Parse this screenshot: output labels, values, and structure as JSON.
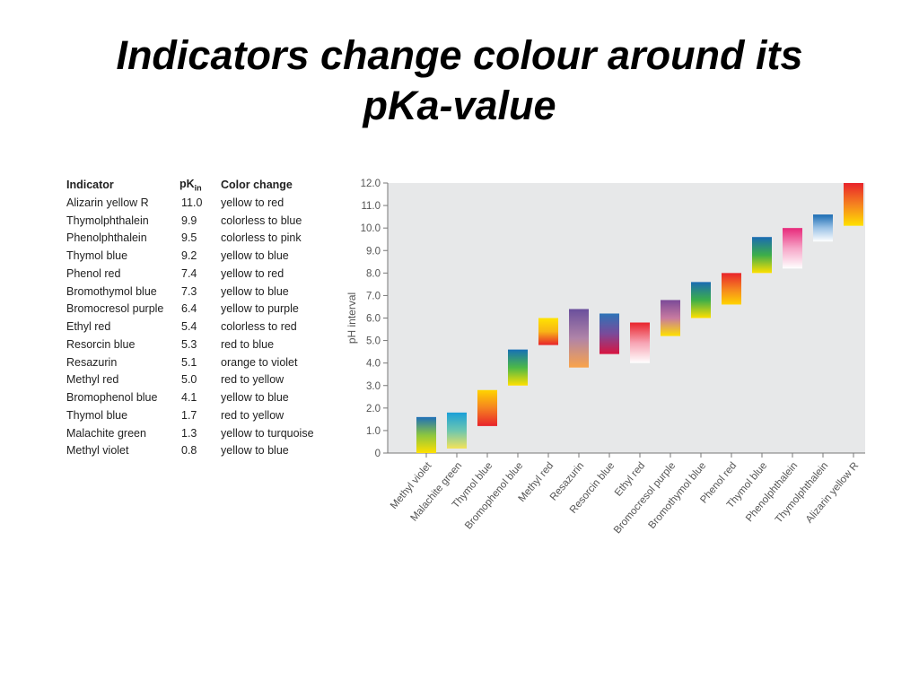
{
  "slide": {
    "title_line1": "Indicators change colour around its",
    "title_line2": "pKa-value"
  },
  "table": {
    "headers": {
      "indicator": "Indicator",
      "pk_main": "pK",
      "pk_sub": "in",
      "color_change": "Color change"
    },
    "rows": [
      {
        "indicator": "Alizarin yellow R",
        "pk": "11.0",
        "change": "yellow to red"
      },
      {
        "indicator": "Thymolphthalein",
        "pk": "9.9",
        "change": "colorless to blue"
      },
      {
        "indicator": "Phenolphthalein",
        "pk": "9.5",
        "change": "colorless to pink"
      },
      {
        "indicator": "Thymol blue",
        "pk": "9.2",
        "change": "yellow to blue"
      },
      {
        "indicator": "Phenol red",
        "pk": "7.4",
        "change": "yellow to red"
      },
      {
        "indicator": "Bromothymol blue",
        "pk": "7.3",
        "change": "yellow to blue"
      },
      {
        "indicator": "Bromocresol purple",
        "pk": "6.4",
        "change": "yellow to purple"
      },
      {
        "indicator": "Ethyl red",
        "pk": "5.4",
        "change": "colorless to red"
      },
      {
        "indicator": "Resorcin blue",
        "pk": "5.3",
        "change": "red to blue"
      },
      {
        "indicator": "Resazurin",
        "pk": "5.1",
        "change": "orange to violet"
      },
      {
        "indicator": "Methyl red",
        "pk": "5.0",
        "change": "red to yellow"
      },
      {
        "indicator": "Bromophenol blue",
        "pk": "4.1",
        "change": "yellow to blue"
      },
      {
        "indicator": "Thymol blue",
        "pk": "1.7",
        "change": "red to yellow"
      },
      {
        "indicator": "Malachite green",
        "pk": "1.3",
        "change": "yellow to turquoise"
      },
      {
        "indicator": "Methyl violet",
        "pk": "0.8",
        "change": "yellow to blue"
      }
    ]
  },
  "chart_data": {
    "type": "bar",
    "title": "",
    "ylabel": "pH interval",
    "xlabel": "",
    "ylim": [
      0,
      12
    ],
    "yticks": [
      "0",
      "1.0",
      "2.0",
      "3.0",
      "4.0",
      "5.0",
      "6.0",
      "7.0",
      "8.0",
      "9.0",
      "10.0",
      "11.0",
      "12.0"
    ],
    "grid": false,
    "categories": [
      "Methyl violet",
      "Malachite green",
      "Thymol blue",
      "Bromophenol blue",
      "Methyl red",
      "Resazurin",
      "Resorcin blue",
      "Ethyl red",
      "Bromocresol purple",
      "Bromothymol blue",
      "Phenol red",
      "Thymol blue",
      "Phenolphthalein",
      "Thymolphthalein",
      "Alizarin yellow R"
    ],
    "ranges": [
      {
        "low": 0.0,
        "high": 1.6,
        "colors": [
          "#ffe000",
          "#8cc63f",
          "#1f6fb8"
        ]
      },
      {
        "low": 0.2,
        "high": 1.8,
        "colors": [
          "#f3e35a",
          "#6cc6b0",
          "#1aa0d8"
        ]
      },
      {
        "low": 1.2,
        "high": 2.8,
        "colors": [
          "#e8232b",
          "#f58220",
          "#ffd400"
        ]
      },
      {
        "low": 3.0,
        "high": 4.6,
        "colors": [
          "#ffe000",
          "#4cb848",
          "#1670b6"
        ]
      },
      {
        "low": 4.8,
        "high": 6.0,
        "colors": [
          "#e8232b",
          "#f8b416",
          "#ffe400"
        ]
      },
      {
        "low": 3.8,
        "high": 6.4,
        "colors": [
          "#f9a34a",
          "#b084a8",
          "#6a4f9c"
        ]
      },
      {
        "low": 4.4,
        "high": 6.2,
        "colors": [
          "#d9143f",
          "#7a4a9a",
          "#2d74b8"
        ]
      },
      {
        "low": 4.0,
        "high": 5.8,
        "colors": [
          "#ffffff",
          "#f7a3b3",
          "#e8232b"
        ]
      },
      {
        "low": 5.2,
        "high": 6.8,
        "colors": [
          "#ffe000",
          "#c77aa0",
          "#7b4a98"
        ]
      },
      {
        "low": 6.0,
        "high": 7.6,
        "colors": [
          "#ffe000",
          "#3cae4a",
          "#1a6bb3"
        ]
      },
      {
        "low": 6.6,
        "high": 8.0,
        "colors": [
          "#ffd400",
          "#f58220",
          "#e8232b"
        ]
      },
      {
        "low": 8.0,
        "high": 9.6,
        "colors": [
          "#ffe000",
          "#3cae4a",
          "#1a6bb3"
        ]
      },
      {
        "low": 8.2,
        "high": 10.0,
        "colors": [
          "#ffffff",
          "#f6a6c8",
          "#e7287a"
        ]
      },
      {
        "low": 9.4,
        "high": 10.6,
        "colors": [
          "#ffffff",
          "#9cc3e6",
          "#1a6bb3"
        ]
      },
      {
        "low": 10.1,
        "high": 12.0,
        "colors": [
          "#ffe000",
          "#f58220",
          "#e8232b"
        ]
      }
    ]
  }
}
